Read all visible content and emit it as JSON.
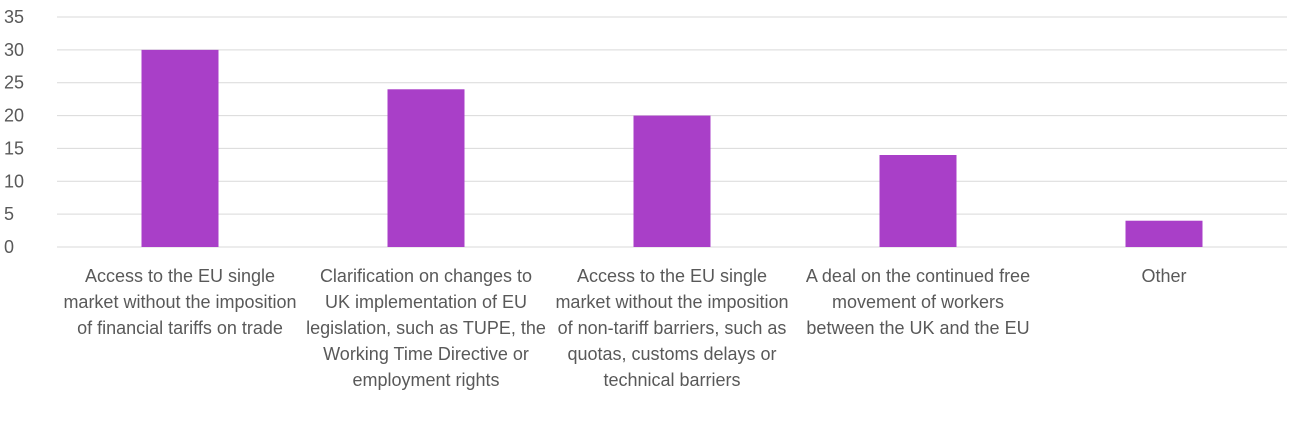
{
  "chart_data": {
    "type": "bar",
    "title": "",
    "xlabel": "",
    "ylabel": "",
    "ylim": [
      0,
      35
    ],
    "yticks": [
      0,
      5,
      10,
      15,
      20,
      25,
      30,
      35
    ],
    "ytick_labels": [
      "0",
      "5",
      "10",
      "15",
      "20",
      "25",
      "30",
      "35"
    ],
    "grid": "horizontal",
    "legend": "none",
    "bar_color": "#A93FC8",
    "categories": [
      "Access to the EU single market without the imposition of financial tariffs on trade",
      "Clarification on changes to UK implementation of EU legislation, such as TUPE, the Working Time Directive or employment rights",
      "Access to the EU single market without the imposition of non-tariff barriers, such as quotas, customs delays or technical barriers",
      "A deal on the continued free movement of workers between the UK and the EU",
      "Other"
    ],
    "values": [
      30,
      24,
      20,
      14,
      4
    ]
  }
}
